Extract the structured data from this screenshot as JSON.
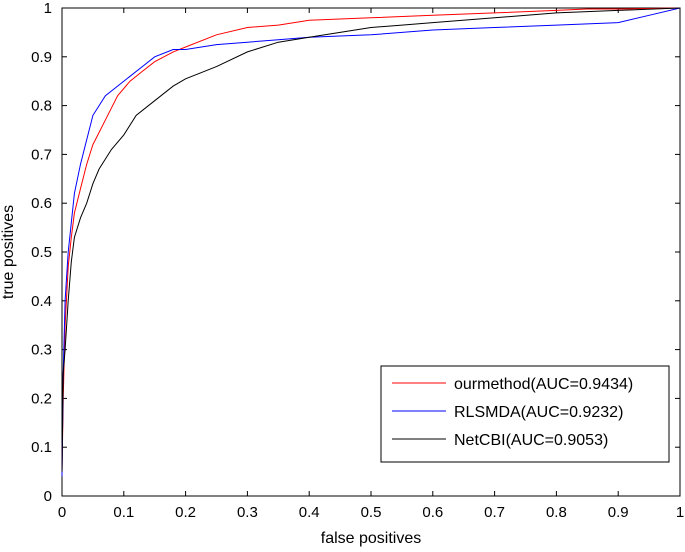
{
  "chart_data": {
    "type": "line",
    "title": "",
    "xlabel": "false positives",
    "ylabel": "true positives",
    "xlim": [
      0,
      1
    ],
    "ylim": [
      0,
      1
    ],
    "xticks": [
      "0",
      "0.1",
      "0.2",
      "0.3",
      "0.4",
      "0.5",
      "0.6",
      "0.7",
      "0.8",
      "0.9",
      "1"
    ],
    "yticks": [
      "0",
      "0.1",
      "0.2",
      "0.3",
      "0.4",
      "0.5",
      "0.6",
      "0.7",
      "0.8",
      "0.9",
      "1"
    ],
    "grid": false,
    "legend_position": "lower-right",
    "series": [
      {
        "name": "ourmethod(AUC=0.9434)",
        "color": "#ff0000",
        "x": [
          0,
          0.002,
          0.005,
          0.01,
          0.015,
          0.02,
          0.03,
          0.04,
          0.05,
          0.07,
          0.09,
          0.11,
          0.13,
          0.15,
          0.18,
          0.2,
          0.25,
          0.3,
          0.35,
          0.4,
          0.5,
          0.6,
          0.7,
          0.8,
          0.85,
          0.9,
          0.95,
          1
        ],
        "y": [
          0.05,
          0.2,
          0.35,
          0.47,
          0.53,
          0.58,
          0.63,
          0.68,
          0.72,
          0.77,
          0.82,
          0.85,
          0.87,
          0.89,
          0.91,
          0.92,
          0.945,
          0.96,
          0.965,
          0.975,
          0.98,
          0.985,
          0.99,
          0.995,
          0.998,
          0.998,
          0.999,
          1
        ]
      },
      {
        "name": "RLSMDA(AUC=0.9232)",
        "color": "#0000ff",
        "x": [
          0,
          0.002,
          0.005,
          0.01,
          0.015,
          0.02,
          0.03,
          0.04,
          0.05,
          0.07,
          0.09,
          0.11,
          0.13,
          0.15,
          0.18,
          0.2,
          0.25,
          0.3,
          0.35,
          0.4,
          0.5,
          0.6,
          0.7,
          0.8,
          0.9,
          0.95,
          1
        ],
        "y": [
          0.04,
          0.25,
          0.4,
          0.5,
          0.56,
          0.62,
          0.68,
          0.73,
          0.78,
          0.82,
          0.84,
          0.86,
          0.88,
          0.9,
          0.915,
          0.915,
          0.925,
          0.93,
          0.935,
          0.94,
          0.945,
          0.955,
          0.96,
          0.965,
          0.97,
          0.985,
          1
        ]
      },
      {
        "name": "NetCBI(AUC=0.9053)",
        "color": "#000000",
        "x": [
          0,
          0.002,
          0.005,
          0.01,
          0.015,
          0.02,
          0.03,
          0.04,
          0.05,
          0.06,
          0.08,
          0.1,
          0.12,
          0.15,
          0.18,
          0.2,
          0.25,
          0.3,
          0.35,
          0.4,
          0.45,
          0.5,
          0.55,
          0.6,
          0.7,
          0.8,
          0.9,
          1
        ],
        "y": [
          0.05,
          0.25,
          0.3,
          0.4,
          0.48,
          0.53,
          0.57,
          0.6,
          0.64,
          0.67,
          0.71,
          0.74,
          0.78,
          0.81,
          0.84,
          0.855,
          0.88,
          0.91,
          0.93,
          0.94,
          0.95,
          0.96,
          0.965,
          0.97,
          0.98,
          0.99,
          0.995,
          1
        ]
      }
    ]
  }
}
